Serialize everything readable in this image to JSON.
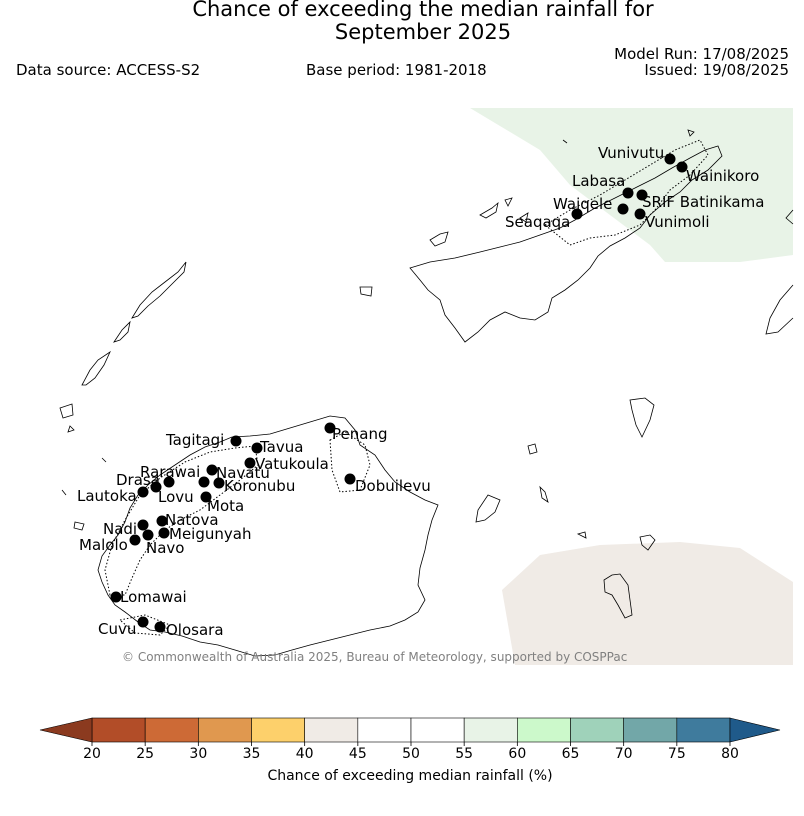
{
  "title_line1": "Chance of exceeding the median rainfall for",
  "title_line2": "September 2025",
  "model_run": "Model Run: 17/08/2025",
  "issued": "Issued: 19/08/2025",
  "data_source": "Data source: ACCESS-S2",
  "base_period": "Base period: 1981-2018",
  "copyright": "© Commonwealth of Australia 2025, Bureau of Meteorology, supported by COSPPac",
  "colorbar": {
    "label": "Chance of exceeding median rainfall (%)",
    "ticks": [
      "20",
      "25",
      "30",
      "35",
      "40",
      "45",
      "50",
      "55",
      "60",
      "65",
      "70",
      "75",
      "80"
    ],
    "colors": [
      "#b24d28",
      "#cd6a36",
      "#e0984f",
      "#fdd06b",
      "#f0ebe6",
      "#ffffff",
      "#ffffff",
      "#e8f3e7",
      "#ccf9cb",
      "#9fd2ba",
      "#72a7a8",
      "#3f7b9d"
    ],
    "under_color": "#8b3a1f",
    "over_color": "#1f5a8a"
  },
  "stations": [
    {
      "name": "Vunivutu"
    },
    {
      "name": "Wainikoro"
    },
    {
      "name": "Labasa"
    },
    {
      "name": "SRIF Batinikama"
    },
    {
      "name": "Waiqele"
    },
    {
      "name": "Seaqaqa"
    },
    {
      "name": "Vunimoli"
    },
    {
      "name": "Tagitagi"
    },
    {
      "name": "Tavua"
    },
    {
      "name": "Penang"
    },
    {
      "name": "Vatukoula"
    },
    {
      "name": "Rarawai"
    },
    {
      "name": "Navatu"
    },
    {
      "name": "Drasa"
    },
    {
      "name": "Koronubu"
    },
    {
      "name": "Lautoka"
    },
    {
      "name": "Lovu"
    },
    {
      "name": "Mota"
    },
    {
      "name": "Dobuilevu"
    },
    {
      "name": "Natova"
    },
    {
      "name": "Nadi"
    },
    {
      "name": "Meigunyah"
    },
    {
      "name": "Malolo"
    },
    {
      "name": "Navo"
    },
    {
      "name": "Lomawai"
    },
    {
      "name": "Cuvu"
    },
    {
      "name": "Olosara"
    }
  ]
}
